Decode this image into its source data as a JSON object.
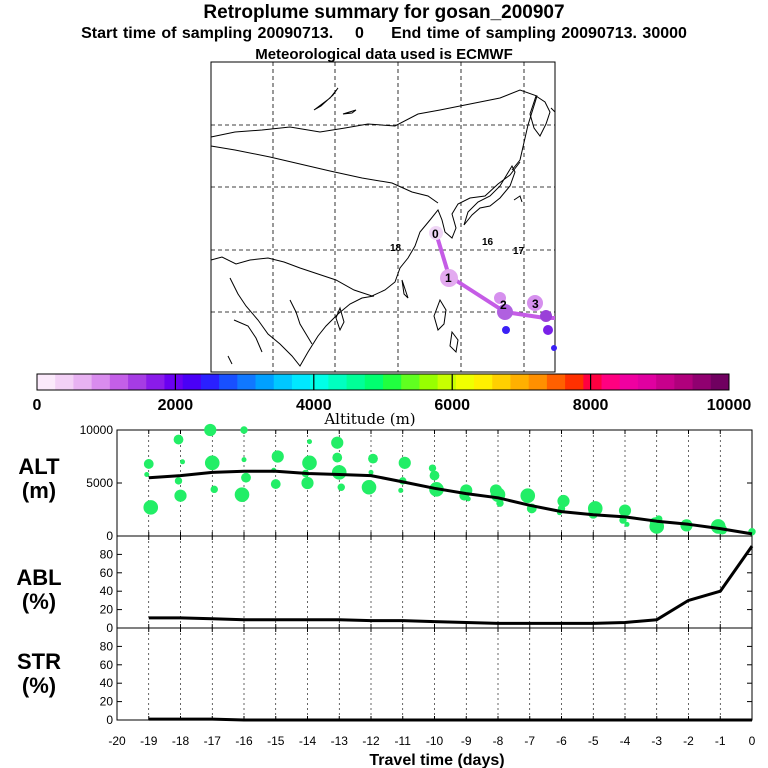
{
  "header": {
    "title": "Retroplume summary for gosan_200907",
    "start_label": "Start time of sampling 20090713.",
    "start_value": "0",
    "end_label": "End time of sampling 20090713. 30000",
    "met": "Meteorological data used is ECMWF"
  },
  "map": {
    "markers": [
      {
        "label": "0",
        "color": "#f0d6f6"
      },
      {
        "label": "1",
        "color": "#dc9aec"
      },
      {
        "label": "2",
        "color": "#b060e0"
      },
      {
        "label": "3",
        "color": "#9a40d8"
      },
      {
        "label": "18",
        "color": "#f2b700"
      },
      {
        "label": "16",
        "color": "#a0105a"
      },
      {
        "label": "17",
        "color": "#a0105a"
      }
    ]
  },
  "colorbar": {
    "ticks": [
      "0",
      "2000",
      "4000",
      "6000",
      "8000",
      "10000"
    ],
    "label": "Altitude (m)",
    "colors": [
      "#fbeafb",
      "#f3d1f6",
      "#e8b2f2",
      "#d98cee",
      "#c45fe8",
      "#a63ce4",
      "#8a1bea",
      "#6a00f2",
      "#4a00f6",
      "#2a20ff",
      "#1850ff",
      "#1078ff",
      "#00a0ff",
      "#00c8ff",
      "#00e8ff",
      "#00ffe8",
      "#00ffc0",
      "#00ff98",
      "#00ff70",
      "#20ff40",
      "#60ff20",
      "#98ff00",
      "#c8ff00",
      "#f0ff00",
      "#fff000",
      "#ffd000",
      "#ffb000",
      "#ff9000",
      "#ff6000",
      "#ff3000",
      "#ff0040",
      "#ff0080",
      "#f000a0",
      "#e000a0",
      "#c8008c",
      "#b0007c",
      "#900070",
      "#700060"
    ]
  },
  "panels": [
    {
      "name": "ALT",
      "unit": "(m)",
      "yticks": [
        "0",
        "5000",
        "10000"
      ]
    },
    {
      "name": "ABL",
      "unit": "(%)",
      "yticks": [
        "0",
        "20",
        "40",
        "60",
        "80"
      ]
    },
    {
      "name": "STR",
      "unit": "(%)",
      "yticks": [
        "0",
        "20",
        "40",
        "60",
        "80"
      ]
    }
  ],
  "xaxis": {
    "ticks": [
      "-20",
      "-19",
      "-18",
      "-17",
      "-16",
      "-15",
      "-14",
      "-13",
      "-12",
      "-11",
      "-10",
      "-9",
      "-8",
      "-7",
      "-6",
      "-5",
      "-4",
      "-3",
      "-2",
      "-1",
      "0"
    ],
    "label": "Travel time (days)"
  },
  "chart_data": {
    "type": "line",
    "x": [
      -19,
      -18,
      -17,
      -16,
      -15,
      -14,
      -13,
      -12,
      -11,
      -10,
      -9,
      -8,
      -7,
      -6,
      -5,
      -4,
      -3,
      -2,
      -1,
      0
    ],
    "series": [
      {
        "name": "ALT",
        "unit": "m",
        "ylim": [
          0,
          10000
        ],
        "values": [
          5500,
          5700,
          6000,
          6100,
          6100,
          5900,
          5800,
          5700,
          5100,
          4500,
          4000,
          3600,
          2900,
          2300,
          2000,
          1800,
          1400,
          1100,
          700,
          200
        ],
        "scatter": [
          [
            -19,
            5800
          ],
          [
            -19,
            6800
          ],
          [
            -19,
            2700
          ],
          [
            -18,
            5200
          ],
          [
            -18,
            3800
          ],
          [
            -18,
            7000
          ],
          [
            -18,
            9100
          ],
          [
            -17,
            6900
          ],
          [
            -17,
            4400
          ],
          [
            -17,
            10000
          ],
          [
            -16,
            7200
          ],
          [
            -16,
            5500
          ],
          [
            -16,
            3900
          ],
          [
            -16,
            10000
          ],
          [
            -15,
            7500
          ],
          [
            -15,
            6200
          ],
          [
            -15,
            4900
          ],
          [
            -14,
            6900
          ],
          [
            -14,
            5900
          ],
          [
            -14,
            5000
          ],
          [
            -14,
            8900
          ],
          [
            -13,
            7400
          ],
          [
            -13,
            6000
          ],
          [
            -13,
            4600
          ],
          [
            -13,
            8800
          ],
          [
            -12,
            6000
          ],
          [
            -12,
            7300
          ],
          [
            -12,
            4600
          ],
          [
            -11,
            5200
          ],
          [
            -11,
            6900
          ],
          [
            -11,
            4300
          ],
          [
            -10,
            5700
          ],
          [
            -10,
            4400
          ],
          [
            -10,
            6400
          ],
          [
            -9,
            4300
          ],
          [
            -9,
            3500
          ],
          [
            -9,
            3800
          ],
          [
            -8,
            3900
          ],
          [
            -8,
            3100
          ],
          [
            -8,
            4300
          ],
          [
            -7,
            3400
          ],
          [
            -7,
            2600
          ],
          [
            -7,
            3800
          ],
          [
            -6,
            2600
          ],
          [
            -6,
            3300
          ],
          [
            -6,
            2200
          ],
          [
            -5,
            2100
          ],
          [
            -5,
            2600
          ],
          [
            -4,
            1500
          ],
          [
            -4,
            2400
          ],
          [
            -4,
            1100
          ],
          [
            -3,
            1300
          ],
          [
            -3,
            900
          ],
          [
            -3,
            1600
          ],
          [
            -2,
            1000
          ],
          [
            -2,
            1300
          ],
          [
            -1,
            600
          ],
          [
            -1,
            900
          ],
          [
            0,
            400
          ]
        ]
      },
      {
        "name": "ABL",
        "unit": "%",
        "ylim": [
          0,
          100
        ],
        "values": [
          11,
          11,
          10,
          9,
          9,
          9,
          9,
          8,
          8,
          7,
          6,
          5,
          5,
          5,
          5,
          6,
          9,
          30,
          40,
          89
        ]
      },
      {
        "name": "STR",
        "unit": "%",
        "ylim": [
          0,
          100
        ],
        "values": [
          1,
          1,
          1,
          0,
          0,
          0,
          0,
          0,
          0,
          0,
          0,
          0,
          0,
          0,
          0,
          0,
          0,
          0,
          0,
          0
        ]
      }
    ],
    "xlabel": "Travel time (days)",
    "xlim": [
      -20,
      0
    ]
  }
}
